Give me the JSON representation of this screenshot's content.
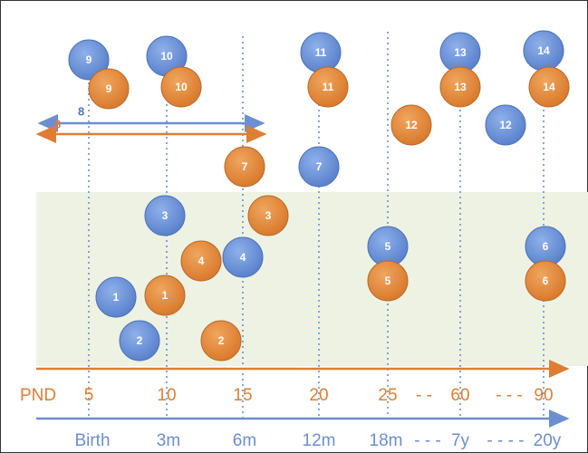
{
  "nodes_blue": [
    "9",
    "10",
    "11",
    "13",
    "14",
    "12",
    "7",
    "3",
    "5",
    "6",
    "4",
    "1",
    "2"
  ],
  "nodes_orange": [
    "9",
    "10",
    "11",
    "13",
    "14",
    "12",
    "7",
    "3",
    "4",
    "5",
    "6",
    "1",
    "2"
  ],
  "range_blue_label": "8",
  "range_orange_label": "8",
  "pnd_axis": {
    "title": "PND",
    "labels": [
      "5",
      "10",
      "15",
      "20",
      "25",
      "- -",
      "60",
      "- - -",
      "90"
    ]
  },
  "age_axis": {
    "labels": [
      "Birth",
      "3m",
      "6m",
      "12m",
      "18m",
      "- - -",
      "7y",
      "- - - -",
      "20y"
    ]
  }
}
